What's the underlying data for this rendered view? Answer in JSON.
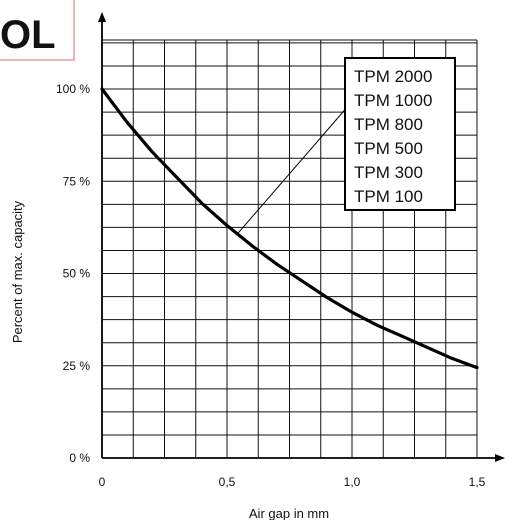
{
  "chart_data": {
    "type": "line",
    "title": "",
    "xlabel": "Air gap in mm",
    "ylabel": "Percent of max. capacity",
    "xlim": [
      0,
      1.5
    ],
    "ylim": [
      0,
      100
    ],
    "x_ticks": [
      {
        "value": 0,
        "label": "0"
      },
      {
        "value": 0.5,
        "label": "0,5"
      },
      {
        "value": 1.0,
        "label": "1,0"
      },
      {
        "value": 1.5,
        "label": "1,5"
      }
    ],
    "y_ticks": [
      {
        "value": 0,
        "label": "0 %"
      },
      {
        "value": 25,
        "label": "25 %"
      },
      {
        "value": 50,
        "label": "50 %"
      },
      {
        "value": 75,
        "label": "75 %"
      },
      {
        "value": 100,
        "label": "100 %"
      }
    ],
    "grid": true,
    "grid_step": {
      "x": 0.125,
      "y": 6.25
    },
    "series": [
      {
        "name": "",
        "color": "#000000",
        "x": [
          0,
          0.1,
          0.2,
          0.3,
          0.4,
          0.5,
          0.6,
          0.7,
          0.8,
          0.9,
          1.0,
          1.1,
          1.2,
          1.3,
          1.4,
          1.5
        ],
        "y": [
          100,
          91,
          83,
          76,
          69,
          63,
          57.5,
          52.5,
          48,
          43.5,
          39.5,
          36,
          33,
          30,
          27,
          24.5
        ]
      }
    ],
    "legend": {
      "placement": "top-right",
      "entries": [
        "TPM 2000",
        "TPM 1000",
        "TPM 800",
        "TPM 500",
        "TPM 300",
        "TPM 100"
      ],
      "pointer_to": {
        "x": 0.55,
        "y": 61
      }
    }
  },
  "watermark": {
    "text": "OL",
    "color": "#e8202a"
  }
}
